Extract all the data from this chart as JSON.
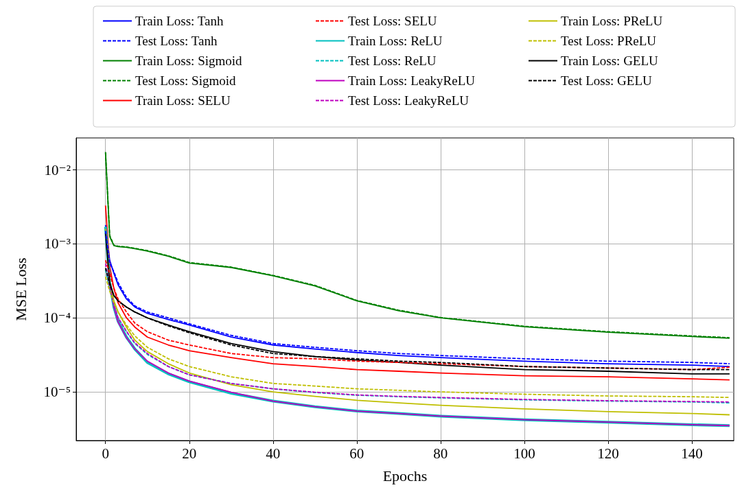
{
  "chart_data": {
    "type": "line",
    "xlabel": "Epochs",
    "ylabel": "MSE Loss",
    "log": "y",
    "grid": true,
    "legend": "top",
    "marker": "none",
    "xlim": [
      -7,
      150
    ],
    "xticks": [
      0,
      20,
      40,
      60,
      80,
      100,
      120,
      140
    ],
    "ylim": [
      2.2e-06,
      0.027
    ],
    "yticks": [
      {
        "value": 1e-05,
        "label": "10⁻⁵"
      },
      {
        "value": 0.0001,
        "label": "10⁻⁴"
      },
      {
        "value": 0.001,
        "label": "10⁻³"
      },
      {
        "value": 0.01,
        "label": "10⁻²"
      }
    ],
    "x": [
      0,
      1,
      2,
      3,
      5,
      7,
      10,
      15,
      20,
      30,
      40,
      50,
      60,
      70,
      80,
      100,
      120,
      140,
      149
    ],
    "series": [
      {
        "name": "Train Loss: Tanh",
        "color": "#0000ff",
        "line_style": "solid",
        "values": [
          0.0018,
          0.0006,
          0.0004,
          0.00028,
          0.00018,
          0.00014,
          0.000115,
          9.5e-05,
          8e-05,
          5.5e-05,
          4.3e-05,
          3.8e-05,
          3.4e-05,
          3.1e-05,
          2.9e-05,
          2.6e-05,
          2.4e-05,
          2.3e-05,
          2.2e-05
        ]
      },
      {
        "name": "Test Loss: Tanh",
        "color": "#0000ff",
        "line_style": "dashed",
        "values": [
          0.0015,
          0.00055,
          0.00042,
          0.0003,
          0.00019,
          0.000145,
          0.00012,
          0.0001,
          8.3e-05,
          5.8e-05,
          4.5e-05,
          4e-05,
          3.6e-05,
          3.3e-05,
          3.1e-05,
          2.8e-05,
          2.6e-05,
          2.5e-05,
          2.4e-05
        ]
      },
      {
        "name": "Train Loss: Sigmoid",
        "color": "#008000",
        "line_style": "solid",
        "values": [
          0.0174,
          0.00125,
          0.00095,
          0.00092,
          0.0009,
          0.00086,
          0.0008,
          0.00068,
          0.00055,
          0.00048,
          0.00037,
          0.00027,
          0.00017,
          0.000125,
          0.0001,
          7.6e-05,
          6.4e-05,
          5.6e-05,
          5.3e-05
        ]
      },
      {
        "name": "Test Loss: Sigmoid",
        "color": "#008000",
        "line_style": "dashed",
        "values": [
          0.017,
          0.0013,
          0.00096,
          0.00093,
          0.00091,
          0.00087,
          0.00081,
          0.00069,
          0.00056,
          0.000485,
          0.000375,
          0.000275,
          0.000172,
          0.000127,
          0.000101,
          7.7e-05,
          6.5e-05,
          5.7e-05,
          5.4e-05
        ]
      },
      {
        "name": "Train Loss: SELU",
        "color": "#ff0000",
        "line_style": "solid",
        "values": [
          0.0033,
          0.0005,
          0.00025,
          0.00016,
          0.0001,
          7.5e-05,
          5.5e-05,
          4.3e-05,
          3.6e-05,
          2.9e-05,
          2.4e-05,
          2.2e-05,
          2e-05,
          1.9e-05,
          1.8e-05,
          1.65e-05,
          1.6e-05,
          1.5e-05,
          1.45e-05
        ]
      },
      {
        "name": "Test Loss: SELU",
        "color": "#ff0000",
        "line_style": "dashed",
        "values": [
          0.0006,
          0.0004,
          0.00025,
          0.00018,
          0.00012,
          8.5e-05,
          6.5e-05,
          5e-05,
          4.3e-05,
          3.3e-05,
          2.9e-05,
          2.8e-05,
          2.6e-05,
          2.5e-05,
          2.4e-05,
          2.2e-05,
          2.1e-05,
          2e-05,
          2.15e-05
        ]
      },
      {
        "name": "Train Loss: ReLU",
        "color": "#00bfbf",
        "line_style": "solid",
        "values": [
          0.0017,
          0.0003,
          0.00014,
          9e-05,
          5.5e-05,
          3.8e-05,
          2.5e-05,
          1.75e-05,
          1.37e-05,
          9.6e-06,
          7.5e-06,
          6.3e-06,
          5.5e-06,
          5.1e-06,
          4.7e-06,
          4.2e-06,
          3.9e-06,
          3.6e-06,
          3.5e-06
        ]
      },
      {
        "name": "Test Loss: ReLU",
        "color": "#00bfbf",
        "line_style": "dashed",
        "values": [
          0.00045,
          0.00025,
          0.00015,
          0.0001,
          6.5e-05,
          4.5e-05,
          3.2e-05,
          2.2e-05,
          1.7e-05,
          1.3e-05,
          1.1e-05,
          9.8e-06,
          9e-06,
          8.6e-06,
          8.3e-06,
          7.8e-06,
          7.5e-06,
          7.3e-06,
          7.1e-06
        ]
      },
      {
        "name": "Train Loss: LeakyReLU",
        "color": "#bf00bf",
        "line_style": "solid",
        "values": [
          0.0016,
          0.00029,
          0.00014,
          8.8e-05,
          5.4e-05,
          3.8e-05,
          2.6e-05,
          1.8e-05,
          1.4e-05,
          9.9e-06,
          7.5e-06,
          6.3e-06,
          5.5e-06,
          5.1e-06,
          4.7e-06,
          4.2e-06,
          3.9e-06,
          3.6e-06,
          3.5e-06
        ]
      },
      {
        "name": "Test Loss: LeakyReLU",
        "color": "#bf00bf",
        "line_style": "dashed",
        "values": [
          0.00054,
          0.00026,
          0.00015,
          0.0001,
          6.6e-05,
          4.6e-05,
          3.3e-05,
          2.2e-05,
          1.7e-05,
          1.3e-05,
          1.1e-05,
          9.9e-06,
          9.1e-06,
          8.7e-06,
          8.4e-06,
          7.9e-06,
          7.6e-06,
          7.4e-06,
          7.3e-06
        ]
      },
      {
        "name": "Train Loss: PReLU",
        "color": "#bfbf00",
        "line_style": "solid",
        "values": [
          0.0016,
          0.0003,
          0.00017,
          0.00012,
          7.5e-05,
          5e-05,
          3.5e-05,
          2.4e-05,
          1.8e-05,
          1.25e-05,
          1e-05,
          8.7e-06,
          7.7e-06,
          7.1e-06,
          6.6e-06,
          5.9e-06,
          5.4e-06,
          5.1e-06,
          4.9e-06
        ]
      },
      {
        "name": "Test Loss: PReLU",
        "color": "#bfbf00",
        "line_style": "dashed",
        "values": [
          0.00036,
          0.00023,
          0.00016,
          0.00012,
          8e-05,
          5.7e-05,
          4e-05,
          2.8e-05,
          2.2e-05,
          1.6e-05,
          1.3e-05,
          1.2e-05,
          1.1e-05,
          1.05e-05,
          1e-05,
          9.3e-06,
          8.8e-06,
          8.6e-06,
          8.4e-06
        ]
      },
      {
        "name": "Train Loss: GELU",
        "color": "#000000",
        "line_style": "solid",
        "values": [
          0.0014,
          0.0003,
          0.0002,
          0.00017,
          0.00014,
          0.00012,
          0.0001,
          8e-05,
          6.5e-05,
          4.5e-05,
          3.5e-05,
          3e-05,
          2.7e-05,
          2.5e-05,
          2.3e-05,
          2e-05,
          1.9e-05,
          1.75e-05,
          1.75e-05
        ]
      },
      {
        "name": "Test Loss: GELU",
        "color": "#000000",
        "line_style": "dashed",
        "values": [
          0.00047,
          0.00028,
          0.0002,
          0.00017,
          0.00014,
          0.00012,
          0.0001,
          7.8e-05,
          6.3e-05,
          4.3e-05,
          3.3e-05,
          3e-05,
          2.8e-05,
          2.6e-05,
          2.5e-05,
          2.2e-05,
          2.1e-05,
          2e-05,
          2e-05
        ]
      }
    ]
  }
}
